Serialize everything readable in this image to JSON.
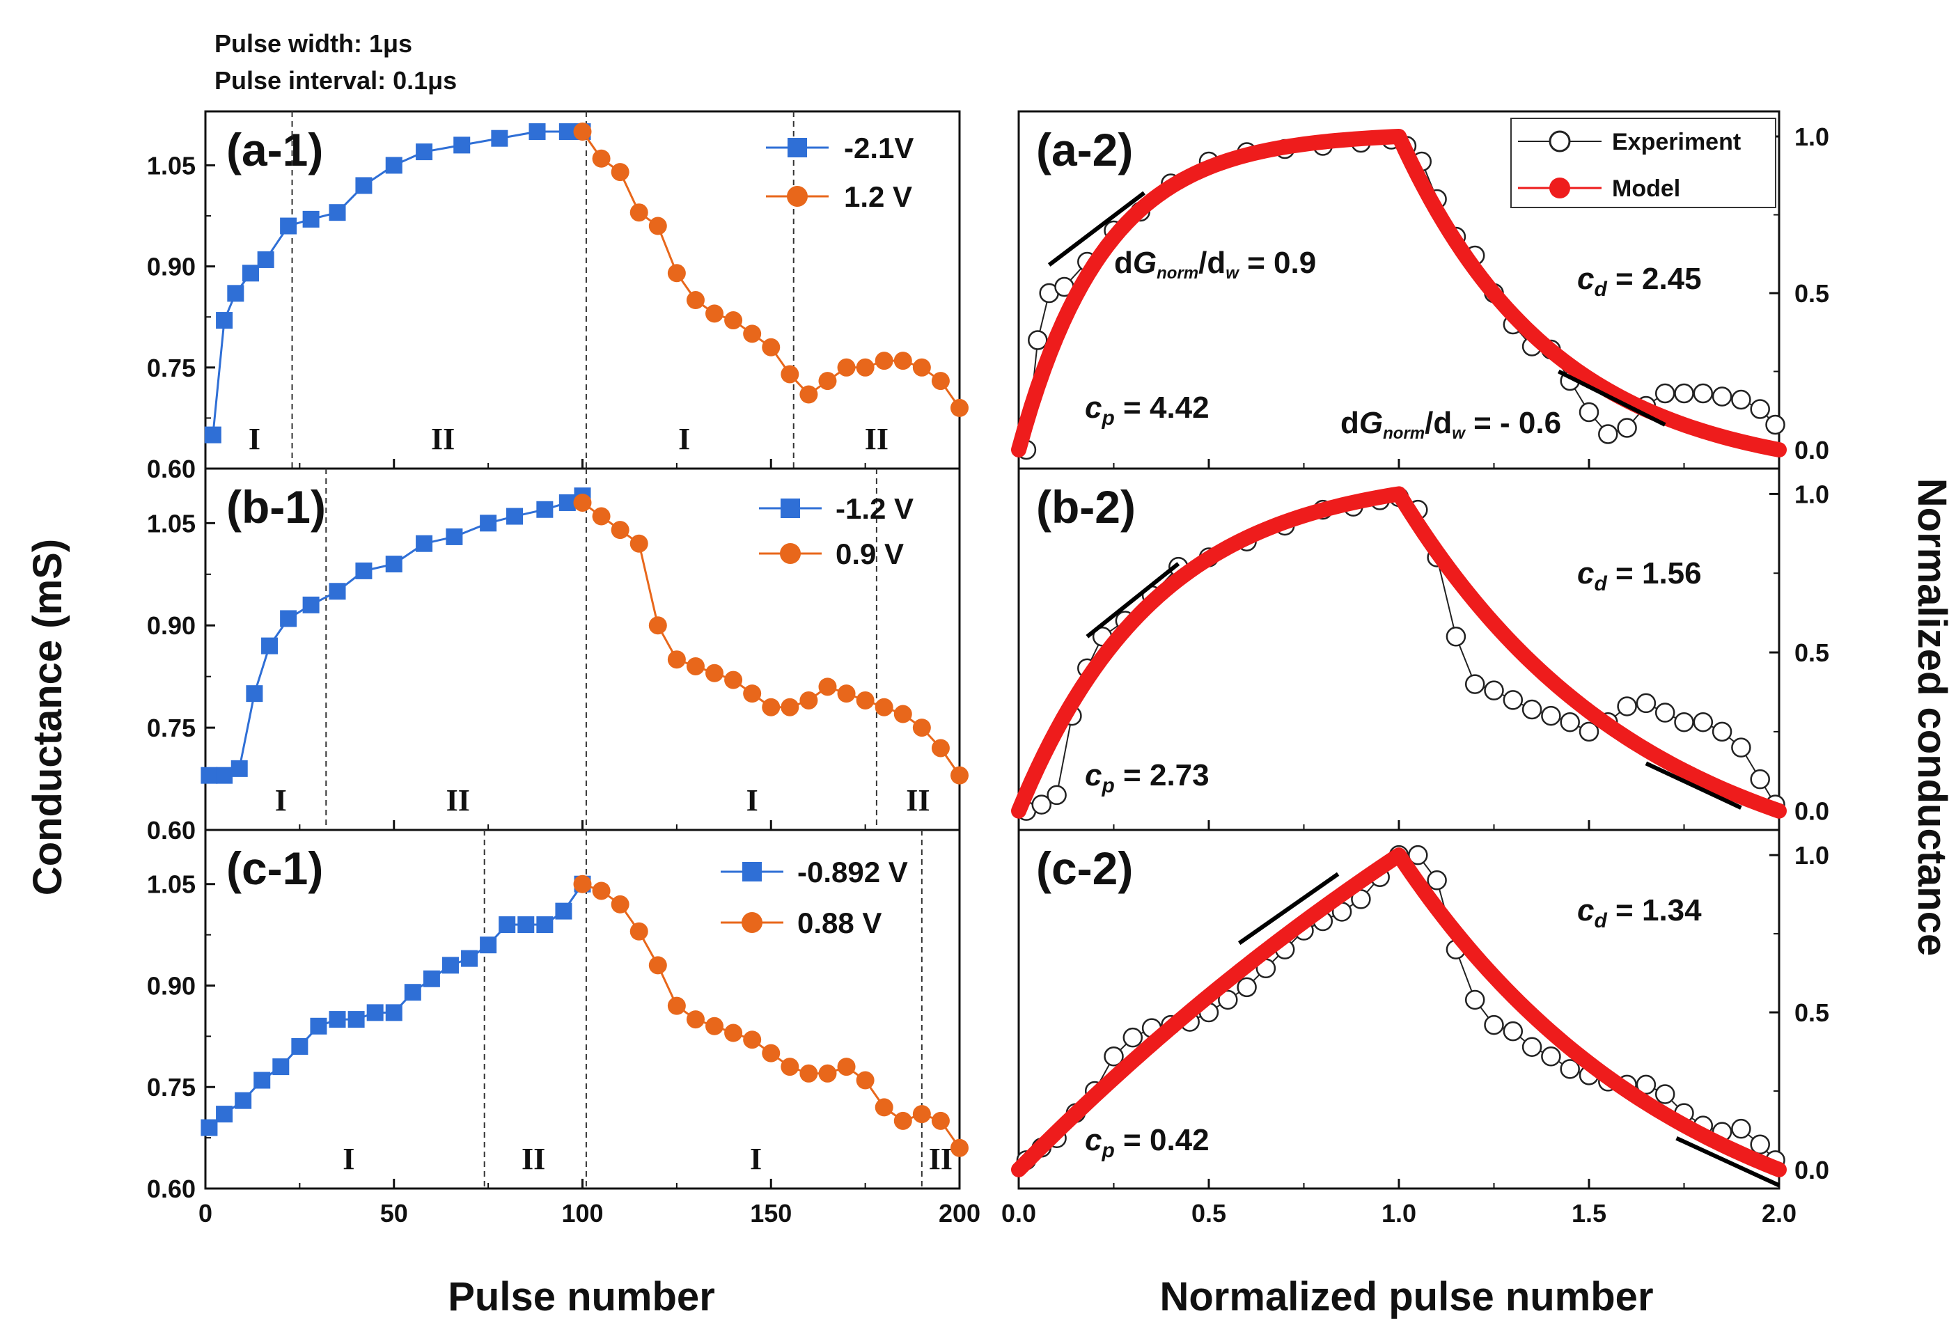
{
  "header": {
    "line1": "Pulse width: 1μs",
    "line2": "Pulse interval: 0.1μs"
  },
  "left_ylabel": "Conductance (mS)",
  "left_xlabel": "Pulse number",
  "right_ylabel": "Normalized conductance",
  "right_xlabel": "Normalized pulse number",
  "colors": {
    "blue": "#2f6fd6",
    "orange": "#e8671b",
    "red": "#ee1c1c",
    "fit_line": "#000000"
  },
  "chart_data": [
    {
      "id": "a-1",
      "type": "scatter",
      "title": "(a-1)",
      "xlim": [
        0,
        200
      ],
      "ylim": [
        0.6,
        1.13
      ],
      "xticks": [
        0,
        50,
        100,
        150,
        200
      ],
      "yticks": [
        0.6,
        0.75,
        0.9,
        1.05
      ],
      "xtick_labels": [
        "0",
        "50",
        "100",
        "150",
        "200"
      ],
      "ytick_labels": [
        "0.60",
        "0.75",
        "0.90",
        "1.05"
      ],
      "series": [
        {
          "name": "-2.1V",
          "marker": "square",
          "color": "#2f6fd6",
          "x": [
            2,
            5,
            8,
            12,
            16,
            22,
            28,
            35,
            42,
            50,
            58,
            68,
            78,
            88,
            96,
            100
          ],
          "y": [
            0.65,
            0.82,
            0.86,
            0.89,
            0.91,
            0.96,
            0.97,
            0.98,
            1.02,
            1.05,
            1.07,
            1.08,
            1.09,
            1.1,
            1.1,
            1.1
          ]
        },
        {
          "name": "1.2 V",
          "marker": "circle",
          "color": "#e8671b",
          "x": [
            100,
            105,
            110,
            115,
            120,
            125,
            130,
            135,
            140,
            145,
            150,
            155,
            160,
            165,
            170,
            175,
            180,
            185,
            190,
            195,
            200
          ],
          "y": [
            1.1,
            1.06,
            1.04,
            0.98,
            0.96,
            0.89,
            0.85,
            0.83,
            0.82,
            0.8,
            0.78,
            0.74,
            0.71,
            0.73,
            0.75,
            0.75,
            0.76,
            0.76,
            0.75,
            0.73,
            0.69
          ]
        }
      ],
      "vlines": [
        23,
        101,
        156
      ],
      "regions": [
        {
          "label": "I",
          "x": 13
        },
        {
          "label": "II",
          "x": 63
        },
        {
          "label": "I",
          "x": 127
        },
        {
          "label": "II",
          "x": 178
        }
      ]
    },
    {
      "id": "b-1",
      "type": "scatter",
      "title": "(b-1)",
      "xlim": [
        0,
        200
      ],
      "ylim": [
        0.6,
        1.13
      ],
      "xticks": [
        0,
        50,
        100,
        150,
        200
      ],
      "yticks": [
        0.6,
        0.75,
        0.9,
        1.05
      ],
      "xtick_labels": [
        "0",
        "50",
        "100",
        "150",
        "200"
      ],
      "ytick_labels": [
        "0.60",
        "0.75",
        "0.90",
        "1.05"
      ],
      "series": [
        {
          "name": "-1.2 V",
          "marker": "square",
          "color": "#2f6fd6",
          "x": [
            1,
            5,
            9,
            13,
            17,
            22,
            28,
            35,
            42,
            50,
            58,
            66,
            75,
            82,
            90,
            96,
            100
          ],
          "y": [
            0.68,
            0.68,
            0.69,
            0.8,
            0.87,
            0.91,
            0.93,
            0.95,
            0.98,
            0.99,
            1.02,
            1.03,
            1.05,
            1.06,
            1.07,
            1.08,
            1.09
          ]
        },
        {
          "name": "0.9 V",
          "marker": "circle",
          "color": "#e8671b",
          "x": [
            100,
            105,
            110,
            115,
            120,
            125,
            130,
            135,
            140,
            145,
            150,
            155,
            160,
            165,
            170,
            175,
            180,
            185,
            190,
            195,
            200
          ],
          "y": [
            1.08,
            1.06,
            1.04,
            1.02,
            0.9,
            0.85,
            0.84,
            0.83,
            0.82,
            0.8,
            0.78,
            0.78,
            0.79,
            0.81,
            0.8,
            0.79,
            0.78,
            0.77,
            0.75,
            0.72,
            0.68
          ]
        }
      ],
      "vlines": [
        32,
        101,
        178
      ],
      "regions": [
        {
          "label": "I",
          "x": 20
        },
        {
          "label": "II",
          "x": 67
        },
        {
          "label": "I",
          "x": 145
        },
        {
          "label": "II",
          "x": 189
        }
      ]
    },
    {
      "id": "c-1",
      "type": "scatter",
      "title": "(c-1)",
      "xlim": [
        0,
        200
      ],
      "ylim": [
        0.6,
        1.13
      ],
      "xticks": [
        0,
        50,
        100,
        150,
        200
      ],
      "yticks": [
        0.6,
        0.75,
        0.9,
        1.05
      ],
      "xtick_labels": [
        "0",
        "50",
        "100",
        "150",
        "200"
      ],
      "ytick_labels": [
        "0.60",
        "0.75",
        "0.90",
        "1.05"
      ],
      "series": [
        {
          "name": "-0.892 V",
          "marker": "square",
          "color": "#2f6fd6",
          "x": [
            1,
            5,
            10,
            15,
            20,
            25,
            30,
            35,
            40,
            45,
            50,
            55,
            60,
            65,
            70,
            75,
            80,
            85,
            90,
            95,
            100
          ],
          "y": [
            0.69,
            0.71,
            0.73,
            0.76,
            0.78,
            0.81,
            0.84,
            0.85,
            0.85,
            0.86,
            0.86,
            0.89,
            0.91,
            0.93,
            0.94,
            0.96,
            0.99,
            0.99,
            0.99,
            1.01,
            1.05
          ]
        },
        {
          "name": "0.88 V",
          "marker": "circle",
          "color": "#e8671b",
          "x": [
            100,
            105,
            110,
            115,
            120,
            125,
            130,
            135,
            140,
            145,
            150,
            155,
            160,
            165,
            170,
            175,
            180,
            185,
            190,
            195,
            200
          ],
          "y": [
            1.05,
            1.04,
            1.02,
            0.98,
            0.93,
            0.87,
            0.85,
            0.84,
            0.83,
            0.82,
            0.8,
            0.78,
            0.77,
            0.77,
            0.78,
            0.76,
            0.72,
            0.7,
            0.71,
            0.7,
            0.66
          ]
        }
      ],
      "vlines": [
        74,
        101,
        190
      ],
      "regions": [
        {
          "label": "I",
          "x": 38
        },
        {
          "label": "II",
          "x": 87
        },
        {
          "label": "I",
          "x": 146
        },
        {
          "label": "II",
          "x": 195
        }
      ]
    },
    {
      "id": "a-2",
      "type": "scatter",
      "title": "(a-2)",
      "xlim": [
        0,
        2.0
      ],
      "ylim": [
        -0.06,
        1.08
      ],
      "xticks": [
        0,
        0.5,
        1.0,
        1.5,
        2.0
      ],
      "yticks": [
        0.0,
        0.5,
        1.0
      ],
      "xtick_labels": [
        "0.0",
        "0.5",
        "1.0",
        "1.5",
        "2.0"
      ],
      "ytick_labels": [
        "0.0",
        "0.5",
        "1.0"
      ],
      "legend": {
        "experiment": "Experiment",
        "model": "Model"
      },
      "model": {
        "cp": 4.42,
        "cd": 2.45
      },
      "experiment": {
        "x": [
          0.02,
          0.05,
          0.08,
          0.12,
          0.18,
          0.25,
          0.32,
          0.4,
          0.5,
          0.6,
          0.7,
          0.8,
          0.9,
          0.98,
          1.02,
          1.06,
          1.1,
          1.15,
          1.2,
          1.25,
          1.3,
          1.35,
          1.4,
          1.45,
          1.5,
          1.55,
          1.6,
          1.65,
          1.7,
          1.75,
          1.8,
          1.85,
          1.9,
          1.95,
          1.99
        ],
        "y": [
          0.0,
          0.35,
          0.5,
          0.52,
          0.6,
          0.7,
          0.76,
          0.85,
          0.92,
          0.95,
          0.96,
          0.97,
          0.98,
          0.99,
          0.97,
          0.92,
          0.8,
          0.68,
          0.62,
          0.5,
          0.4,
          0.33,
          0.32,
          0.22,
          0.12,
          0.05,
          0.07,
          0.14,
          0.18,
          0.18,
          0.18,
          0.17,
          0.16,
          0.13,
          0.08
        ]
      },
      "annotations": [
        "cp = 4.42",
        "cd = 2.45",
        "dGnorm/dw = 0.9",
        "dGnorm/dw = - 0.6"
      ],
      "slope_lines": [
        {
          "x0": 0.08,
          "y0": 0.59,
          "x1": 0.33,
          "y1": 0.82
        },
        {
          "x0": 1.42,
          "y0": 0.25,
          "x1": 1.7,
          "y1": 0.08
        }
      ]
    },
    {
      "id": "b-2",
      "type": "scatter",
      "title": "(b-2)",
      "xlim": [
        0,
        2.0
      ],
      "ylim": [
        -0.06,
        1.08
      ],
      "xticks": [
        0,
        0.5,
        1.0,
        1.5,
        2.0
      ],
      "yticks": [
        0.0,
        0.5,
        1.0
      ],
      "xtick_labels": [
        "0.0",
        "0.5",
        "1.0",
        "1.5",
        "2.0"
      ],
      "ytick_labels": [
        "0.0",
        "0.5",
        "1.0"
      ],
      "model": {
        "cp": 2.73,
        "cd": 1.56
      },
      "experiment": {
        "x": [
          0.02,
          0.06,
          0.1,
          0.14,
          0.18,
          0.22,
          0.28,
          0.35,
          0.42,
          0.5,
          0.6,
          0.7,
          0.8,
          0.88,
          0.95,
          1.0,
          1.05,
          1.1,
          1.15,
          1.2,
          1.25,
          1.3,
          1.35,
          1.4,
          1.45,
          1.5,
          1.55,
          1.6,
          1.65,
          1.7,
          1.75,
          1.8,
          1.85,
          1.9,
          1.95,
          1.99
        ],
        "y": [
          0.0,
          0.02,
          0.05,
          0.3,
          0.45,
          0.55,
          0.6,
          0.68,
          0.77,
          0.8,
          0.85,
          0.9,
          0.95,
          0.96,
          0.98,
          0.99,
          0.95,
          0.8,
          0.55,
          0.4,
          0.38,
          0.35,
          0.32,
          0.3,
          0.28,
          0.25,
          0.28,
          0.33,
          0.34,
          0.31,
          0.28,
          0.28,
          0.25,
          0.2,
          0.1,
          0.02
        ]
      },
      "annotations": [
        "cp = 2.73",
        "cd = 1.56"
      ],
      "slope_lines": [
        {
          "x0": 0.18,
          "y0": 0.55,
          "x1": 0.42,
          "y1": 0.78
        },
        {
          "x0": 1.65,
          "y0": 0.15,
          "x1": 1.9,
          "y1": 0.01
        }
      ]
    },
    {
      "id": "c-2",
      "type": "scatter",
      "title": "(c-2)",
      "xlim": [
        0,
        2.0
      ],
      "ylim": [
        -0.06,
        1.08
      ],
      "xticks": [
        0,
        0.5,
        1.0,
        1.5,
        2.0
      ],
      "yticks": [
        0.0,
        0.5,
        1.0
      ],
      "xtick_labels": [
        "0.0",
        "0.5",
        "1.0",
        "1.5",
        "2.0"
      ],
      "ytick_labels": [
        "0.0",
        "0.5",
        "1.0"
      ],
      "model": {
        "cp": 0.42,
        "cd": 1.34
      },
      "experiment": {
        "x": [
          0.02,
          0.06,
          0.1,
          0.15,
          0.2,
          0.25,
          0.3,
          0.35,
          0.4,
          0.45,
          0.5,
          0.55,
          0.6,
          0.65,
          0.7,
          0.75,
          0.8,
          0.85,
          0.9,
          0.95,
          1.0,
          1.05,
          1.1,
          1.15,
          1.2,
          1.25,
          1.3,
          1.35,
          1.4,
          1.45,
          1.5,
          1.55,
          1.6,
          1.65,
          1.7,
          1.75,
          1.8,
          1.85,
          1.9,
          1.95,
          1.99
        ],
        "y": [
          0.03,
          0.07,
          0.1,
          0.18,
          0.25,
          0.36,
          0.42,
          0.45,
          0.46,
          0.47,
          0.5,
          0.54,
          0.58,
          0.64,
          0.7,
          0.76,
          0.79,
          0.82,
          0.86,
          0.93,
          1.0,
          1.0,
          0.92,
          0.7,
          0.54,
          0.46,
          0.44,
          0.39,
          0.36,
          0.32,
          0.3,
          0.28,
          0.27,
          0.27,
          0.24,
          0.18,
          0.14,
          0.12,
          0.13,
          0.08,
          0.03
        ]
      },
      "annotations": [
        "cp = 0.42",
        "cd = 1.34"
      ],
      "slope_lines": [
        {
          "x0": 0.58,
          "y0": 0.72,
          "x1": 0.84,
          "y1": 0.94
        },
        {
          "x0": 1.73,
          "y0": 0.1,
          "x1": 2.0,
          "y1": -0.05
        }
      ]
    }
  ]
}
